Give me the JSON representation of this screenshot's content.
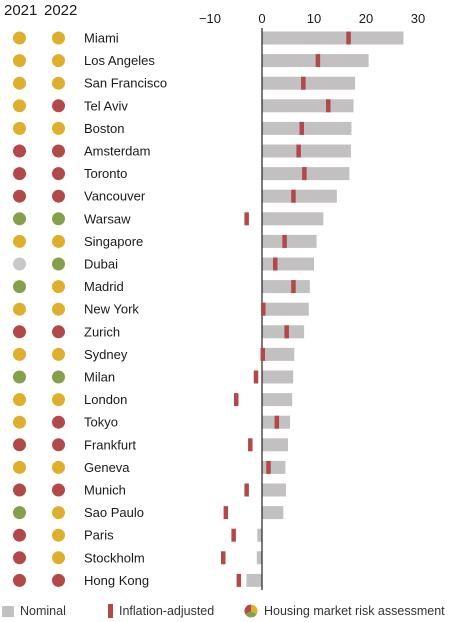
{
  "header": {
    "year_a": "2021",
    "year_b": "2022"
  },
  "colors": {
    "nominal_bar": "#c2c0c0",
    "inflation_marker": "#b34848",
    "axis": "#222222",
    "risk_high": "#b34848",
    "risk_overvalued": "#ddaf2c",
    "risk_fair": "#85a04a",
    "risk_none": "#c8c8c8"
  },
  "legend": {
    "nominal": "Nominal",
    "inflation_adjusted": "Inflation-adjusted",
    "risk": "Housing market risk assessment"
  },
  "chart_data": {
    "type": "bar",
    "orientation": "horizontal",
    "x_range": [
      -15,
      35
    ],
    "x_ticks": [
      -10,
      0,
      10,
      20,
      30
    ],
    "x_tick_labels": [
      "−10",
      "0",
      "10",
      "20",
      "30"
    ],
    "grid": false,
    "legend_position": "bottom",
    "categories": [
      "Miami",
      "Los Angeles",
      "San Francisco",
      "Tel Aviv",
      "Boston",
      "Amsterdam",
      "Toronto",
      "Vancouver",
      "Warsaw",
      "Singapore",
      "Dubai",
      "Madrid",
      "New York",
      "Zurich",
      "Sydney",
      "Milan",
      "London",
      "Tokyo",
      "Frankfurt",
      "Geneva",
      "Munich",
      "Sao Paulo",
      "Paris",
      "Stockholm",
      "Hong Kong"
    ],
    "series": [
      {
        "name": "Nominal",
        "values": [
          27.2,
          20.5,
          17.9,
          17.6,
          17.2,
          17.1,
          16.8,
          14.4,
          11.8,
          10.5,
          10.0,
          9.2,
          9.0,
          8.1,
          6.2,
          6.0,
          5.8,
          5.4,
          5.0,
          4.5,
          4.6,
          4.1,
          -0.9,
          -1.0,
          -3.0
        ]
      },
      {
        "name": "Inflation-adjusted",
        "values": [
          16.6,
          10.7,
          7.9,
          12.7,
          7.6,
          7.0,
          8.1,
          6.0,
          -3.0,
          4.3,
          2.5,
          6.0,
          0.2,
          4.7,
          0.1,
          -1.2,
          -5.0,
          2.8,
          -2.3,
          1.2,
          -3.0,
          -7.0,
          -5.5,
          -7.5,
          -4.5
        ]
      }
    ],
    "risk_2021": [
      "overvalued",
      "overvalued",
      "overvalued",
      "overvalued",
      "overvalued",
      "high",
      "high",
      "high",
      "fair",
      "overvalued",
      "none",
      "fair",
      "overvalued",
      "high",
      "overvalued",
      "fair",
      "overvalued",
      "overvalued",
      "high",
      "overvalued",
      "high",
      "fair",
      "high",
      "high",
      "high"
    ],
    "risk_2022": [
      "overvalued",
      "overvalued",
      "overvalued",
      "high",
      "overvalued",
      "high",
      "high",
      "high",
      "fair",
      "overvalued",
      "fair",
      "overvalued",
      "overvalued",
      "high",
      "overvalued",
      "fair",
      "overvalued",
      "high",
      "high",
      "overvalued",
      "high",
      "overvalued",
      "overvalued",
      "overvalued",
      "high"
    ]
  }
}
